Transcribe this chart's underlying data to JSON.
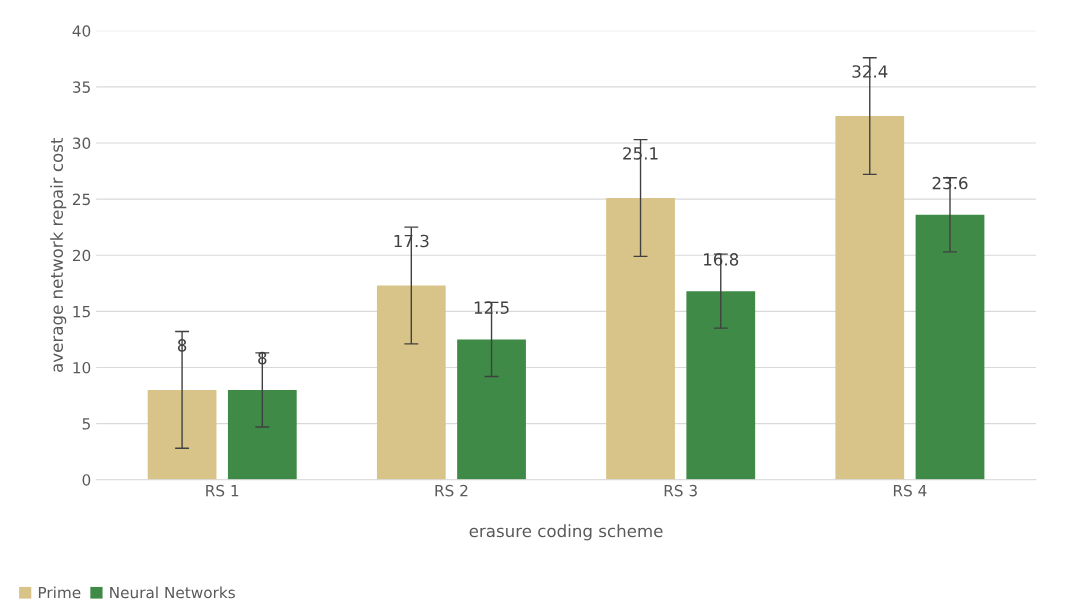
{
  "chart_data": {
    "type": "bar",
    "xlabel": "erasure coding scheme",
    "ylabel": "average network repair cost",
    "categories": [
      "RS 1",
      "RS 2",
      "RS 3",
      "RS 4"
    ],
    "series": [
      {
        "name": "Prime",
        "color": "#d8c488",
        "values": [
          8,
          17.3,
          25.1,
          32.4
        ],
        "errors": [
          5.2,
          5.2,
          5.2,
          5.2
        ]
      },
      {
        "name": "Neural Networks",
        "color": "#3e8a46",
        "values": [
          8,
          12.5,
          16.8,
          23.6
        ],
        "errors": [
          3.3,
          3.3,
          3.3,
          3.3
        ]
      }
    ],
    "ylim": [
      0,
      40
    ],
    "yticks": [
      0,
      5,
      10,
      15,
      20,
      25,
      30,
      35,
      40
    ],
    "grid": "y",
    "legend": "bottom left",
    "data_labels": true
  }
}
